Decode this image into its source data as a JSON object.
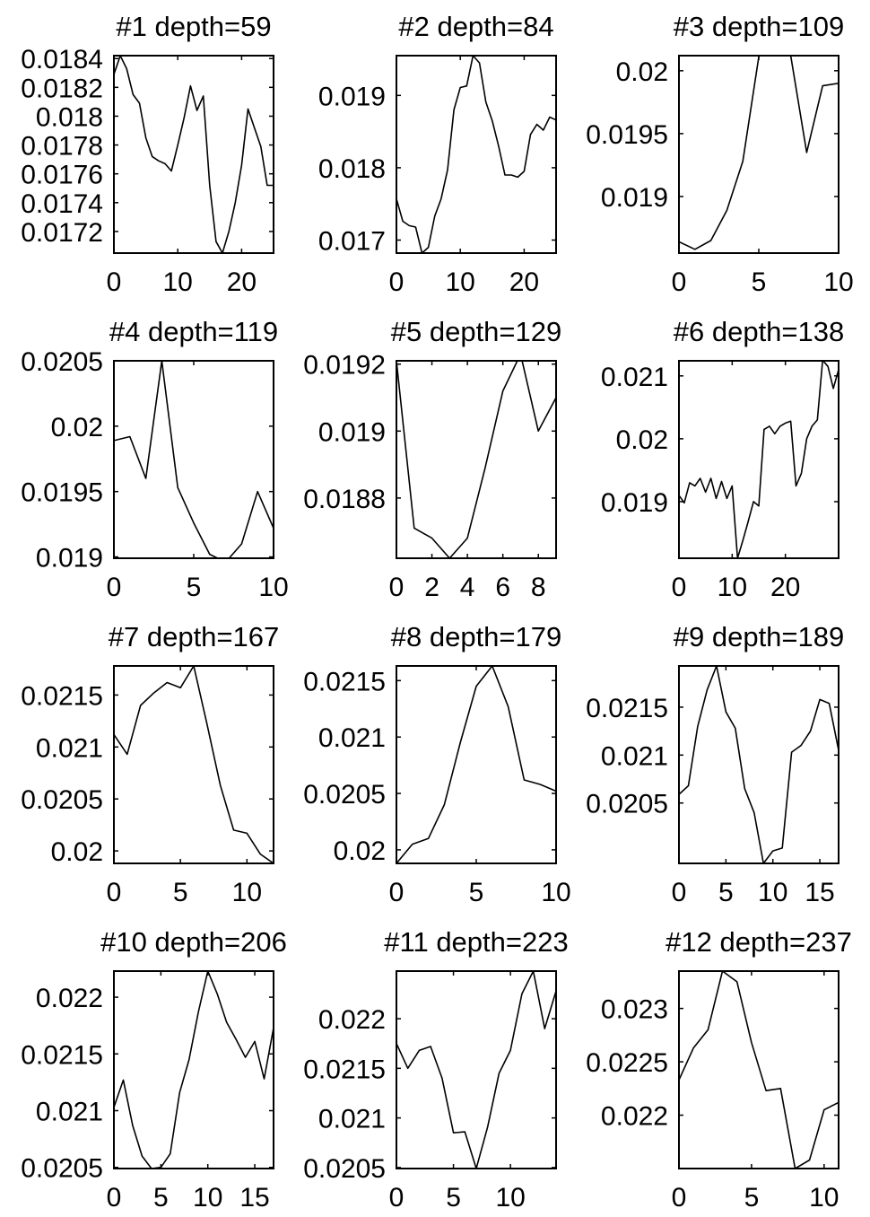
{
  "figure": {
    "type": "small-multiples",
    "panel_count": 12,
    "grid": false,
    "line_color": "#000000",
    "background": "#ffffff"
  },
  "chart_data": [
    {
      "type": "line",
      "title": "#1 depth=59",
      "xlim": [
        0,
        25
      ],
      "ylim": [
        0.01705,
        0.01842
      ],
      "xticks": [
        0,
        10,
        20
      ],
      "xtick_labels": [
        "0",
        "10",
        "20"
      ],
      "yticks": [
        0.0184,
        0.0182,
        0.018,
        0.0178,
        0.0176,
        0.0174,
        0.0172
      ],
      "ytick_labels": [
        "0.0184",
        "0.0182",
        "0.018",
        "0.0178",
        "0.0176",
        "0.0174",
        "0.0172"
      ],
      "series": [
        {
          "x": [
            0,
            1,
            2,
            3,
            4,
            5,
            6,
            7,
            8,
            9,
            10,
            11,
            12,
            13,
            14,
            15,
            16,
            17,
            18,
            19,
            20,
            21,
            22,
            23,
            24,
            25
          ],
          "values": [
            0.01829,
            0.01842,
            0.01833,
            0.01815,
            0.01809,
            0.01785,
            0.01772,
            0.01769,
            0.01767,
            0.01762,
            0.0178,
            0.01799,
            0.01821,
            0.01804,
            0.01814,
            0.01752,
            0.01713,
            0.01705,
            0.0172,
            0.0174,
            0.01766,
            0.01805,
            0.01792,
            0.01779,
            0.01752,
            0.01752
          ]
        }
      ]
    },
    {
      "type": "line",
      "title": "#2 depth=84",
      "xlim": [
        0,
        25
      ],
      "ylim": [
        0.01682,
        0.01955
      ],
      "xticks": [
        0,
        10,
        20
      ],
      "xtick_labels": [
        "0",
        "10",
        "20"
      ],
      "yticks": [
        0.019,
        0.018,
        0.017
      ],
      "ytick_labels": [
        "0.019",
        "0.018",
        "0.017"
      ],
      "series": [
        {
          "x": [
            0,
            1,
            2,
            3,
            4,
            5,
            6,
            7,
            8,
            9,
            10,
            11,
            12,
            13,
            14,
            15,
            16,
            17,
            18,
            19,
            20,
            21,
            22,
            23,
            24,
            25
          ],
          "values": [
            0.01757,
            0.01726,
            0.0172,
            0.01718,
            0.01682,
            0.0169,
            0.01733,
            0.01757,
            0.01797,
            0.0188,
            0.01911,
            0.01913,
            0.01955,
            0.01945,
            0.01891,
            0.01865,
            0.0183,
            0.0179,
            0.0179,
            0.01787,
            0.01795,
            0.01846,
            0.0186,
            0.01852,
            0.0187,
            0.01866
          ]
        }
      ]
    },
    {
      "type": "line",
      "title": "#3 depth=109",
      "xlim": [
        0,
        10
      ],
      "ylim": [
        0.01855,
        0.02012
      ],
      "xticks": [
        0,
        5,
        10
      ],
      "xtick_labels": [
        "0",
        "5",
        "10"
      ],
      "yticks": [
        0.02,
        0.0195,
        0.019
      ],
      "ytick_labels": [
        "0.02",
        "0.0195",
        "0.019"
      ],
      "series": [
        {
          "x": [
            0,
            1,
            2,
            3,
            4,
            5,
            6,
            7,
            8,
            9,
            10
          ],
          "values": [
            0.01864,
            0.01858,
            0.01865,
            0.01889,
            0.01928,
            0.02011,
            0.0203,
            0.02012,
            0.01935,
            0.01988,
            0.0199
          ]
        }
      ]
    },
    {
      "type": "line",
      "title": "#4 depth=119",
      "xlim": [
        0,
        10
      ],
      "ylim": [
        0.01899,
        0.0205
      ],
      "xticks": [
        0,
        5,
        10
      ],
      "xtick_labels": [
        "0",
        "5",
        "10"
      ],
      "yticks": [
        0.0205,
        0.02,
        0.0195,
        0.019
      ],
      "ytick_labels": [
        "0.0205",
        "0.02",
        "0.0195",
        "0.019"
      ],
      "series": [
        {
          "x": [
            0,
            1,
            2,
            3,
            4,
            5,
            6,
            7,
            8,
            9,
            10
          ],
          "values": [
            0.01989,
            0.01992,
            0.0196,
            0.0205,
            0.01953,
            0.01926,
            0.01902,
            0.01896,
            0.0191,
            0.0195,
            0.01922
          ]
        }
      ]
    },
    {
      "type": "line",
      "title": "#5 depth=129",
      "xlim": [
        0,
        9
      ],
      "ylim": [
        0.01862,
        0.01921
      ],
      "xticks": [
        0,
        2,
        4,
        6,
        8
      ],
      "xtick_labels": [
        "0",
        "2",
        "4",
        "6",
        "8"
      ],
      "yticks": [
        0.0192,
        0.019,
        0.0188
      ],
      "ytick_labels": [
        "0.0192",
        "0.019",
        "0.0188"
      ],
      "series": [
        {
          "x": [
            0,
            1,
            2,
            3,
            4,
            5,
            6,
            7,
            8,
            9
          ],
          "values": [
            0.01921,
            0.01871,
            0.01868,
            0.01862,
            0.01868,
            0.01889,
            0.01912,
            0.01923,
            0.019,
            0.0191
          ]
        }
      ]
    },
    {
      "type": "line",
      "title": "#6 depth=138",
      "xlim": [
        0,
        30
      ],
      "ylim": [
        0.0181,
        0.02124
      ],
      "xticks": [
        0,
        10,
        20
      ],
      "xtick_labels": [
        "0",
        "10",
        "20"
      ],
      "yticks": [
        0.021,
        0.02,
        0.019
      ],
      "ytick_labels": [
        "0.021",
        "0.02",
        "0.019"
      ],
      "series": [
        {
          "x": [
            0,
            1,
            2,
            3,
            4,
            5,
            6,
            7,
            8,
            9,
            10,
            11,
            12,
            13,
            14,
            15,
            16,
            17,
            18,
            19,
            20,
            21,
            22,
            23,
            24,
            25,
            26,
            27,
            28,
            29,
            30
          ],
          "values": [
            0.0191,
            0.01898,
            0.0193,
            0.01925,
            0.01937,
            0.01915,
            0.01937,
            0.01905,
            0.01932,
            0.01905,
            0.01925,
            0.0181,
            0.01838,
            0.01868,
            0.019,
            0.01893,
            0.02015,
            0.0202,
            0.02008,
            0.0202,
            0.02025,
            0.02028,
            0.01925,
            0.01945,
            0.02,
            0.0202,
            0.0203,
            0.02125,
            0.02115,
            0.0208,
            0.0211
          ]
        }
      ]
    },
    {
      "type": "line",
      "title": "#7 depth=167",
      "xlim": [
        0,
        12
      ],
      "ylim": [
        0.01988,
        0.02178
      ],
      "xticks": [
        0,
        5,
        10
      ],
      "xtick_labels": [
        "0",
        "5",
        "10"
      ],
      "yticks": [
        0.0215,
        0.021,
        0.0205,
        0.02
      ],
      "ytick_labels": [
        "0.0215",
        "0.021",
        "0.0205",
        "0.02"
      ],
      "series": [
        {
          "x": [
            0,
            1,
            2,
            3,
            4,
            5,
            6,
            7,
            8,
            9,
            10,
            11,
            12
          ],
          "values": [
            0.02112,
            0.02093,
            0.0214,
            0.02152,
            0.02162,
            0.02157,
            0.02178,
            0.02122,
            0.02063,
            0.0202,
            0.02017,
            0.01997,
            0.01988
          ]
        }
      ]
    },
    {
      "type": "line",
      "title": "#8 depth=179",
      "xlim": [
        0,
        10
      ],
      "ylim": [
        0.01988,
        0.02163
      ],
      "xticks": [
        0,
        5,
        10
      ],
      "xtick_labels": [
        "0",
        "5",
        "10"
      ],
      "yticks": [
        0.0215,
        0.021,
        0.0205,
        0.02
      ],
      "ytick_labels": [
        "0.0215",
        "0.021",
        "0.0205",
        "0.02"
      ],
      "series": [
        {
          "x": [
            0,
            1,
            2,
            3,
            4,
            5,
            6,
            7,
            8,
            9,
            10
          ],
          "values": [
            0.01988,
            0.02005,
            0.0201,
            0.0204,
            0.02095,
            0.02145,
            0.02163,
            0.02127,
            0.02062,
            0.02058,
            0.02052
          ]
        }
      ]
    },
    {
      "type": "line",
      "title": "#9 depth=189",
      "xlim": [
        0,
        17
      ],
      "ylim": [
        0.01987,
        0.02193
      ],
      "xticks": [
        0,
        5,
        10,
        15
      ],
      "xtick_labels": [
        "0",
        "5",
        "10",
        "15"
      ],
      "yticks": [
        0.0215,
        0.021,
        0.0205
      ],
      "ytick_labels": [
        "0.0215",
        "0.021",
        "0.0205"
      ],
      "series": [
        {
          "x": [
            0,
            1,
            2,
            3,
            4,
            5,
            6,
            7,
            8,
            9,
            10,
            11,
            12,
            13,
            14,
            15,
            16,
            17
          ],
          "values": [
            0.02059,
            0.02068,
            0.0213,
            0.02168,
            0.02193,
            0.02145,
            0.02128,
            0.02065,
            0.0204,
            0.01987,
            0.02,
            0.02003,
            0.02103,
            0.0211,
            0.02125,
            0.02158,
            0.02154,
            0.02105
          ]
        }
      ]
    },
    {
      "type": "line",
      "title": "#10 depth=206",
      "xlim": [
        0,
        17
      ],
      "ylim": [
        0.02049,
        0.02223
      ],
      "xticks": [
        0,
        5,
        10,
        15
      ],
      "xtick_labels": [
        "0",
        "5",
        "10",
        "15"
      ],
      "yticks": [
        0.022,
        0.0215,
        0.021,
        0.0205
      ],
      "ytick_labels": [
        "0.022",
        "0.0215",
        "0.021",
        "0.0205"
      ],
      "series": [
        {
          "x": [
            0,
            1,
            2,
            3,
            4,
            5,
            6,
            7,
            8,
            9,
            10,
            11,
            12,
            13,
            14,
            15,
            16,
            17
          ],
          "values": [
            0.02103,
            0.02127,
            0.02087,
            0.0206,
            0.02049,
            0.0205,
            0.02062,
            0.02116,
            0.02145,
            0.02187,
            0.02223,
            0.02203,
            0.02178,
            0.02163,
            0.02147,
            0.02161,
            0.02128,
            0.02173
          ]
        }
      ]
    },
    {
      "type": "line",
      "title": "#11 depth=223",
      "xlim": [
        0,
        14
      ],
      "ylim": [
        0.02049,
        0.02248
      ],
      "xticks": [
        0,
        5,
        10
      ],
      "xtick_labels": [
        "0",
        "5",
        "10"
      ],
      "yticks": [
        0.022,
        0.0215,
        0.021,
        0.0205
      ],
      "ytick_labels": [
        "0.022",
        "0.0215",
        "0.021",
        "0.0205"
      ],
      "series": [
        {
          "x": [
            0,
            1,
            2,
            3,
            4,
            5,
            6,
            7,
            8,
            9,
            10,
            11,
            12,
            13,
            14
          ],
          "values": [
            0.02175,
            0.0215,
            0.02168,
            0.02172,
            0.0214,
            0.02085,
            0.02086,
            0.02049,
            0.02091,
            0.02145,
            0.02168,
            0.02225,
            0.02248,
            0.0219,
            0.02228
          ]
        }
      ]
    },
    {
      "type": "line",
      "title": "#12 depth=237",
      "xlim": [
        0,
        11
      ],
      "ylim": [
        0.0215,
        0.02335
      ],
      "xticks": [
        0,
        5,
        10
      ],
      "xtick_labels": [
        "0",
        "5",
        "10"
      ],
      "yticks": [
        0.023,
        0.0225,
        0.022
      ],
      "ytick_labels": [
        "0.023",
        "0.0225",
        "0.022"
      ],
      "series": [
        {
          "x": [
            0,
            1,
            2,
            3,
            4,
            5,
            6,
            7,
            8,
            9,
            10,
            11
          ],
          "values": [
            0.02233,
            0.02263,
            0.0228,
            0.02335,
            0.02325,
            0.02268,
            0.02223,
            0.02225,
            0.0215,
            0.02158,
            0.02205,
            0.02212
          ]
        }
      ]
    }
  ]
}
